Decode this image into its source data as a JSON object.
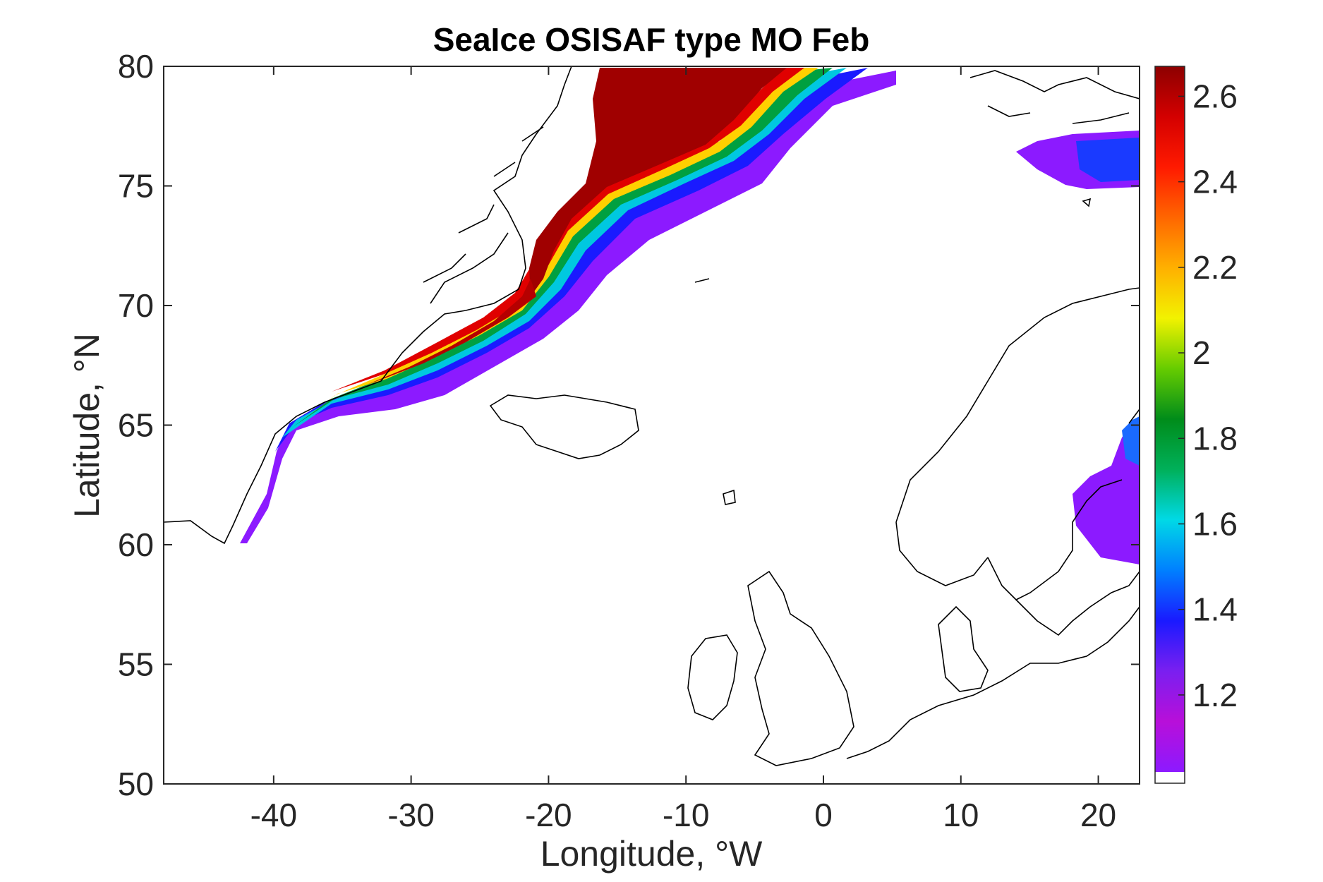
{
  "title": "SeaIce OSISAF type MO Feb",
  "map": {
    "x_label": "Longitude, °W",
    "y_label": "Latitude, °N",
    "x_ticks": [
      {
        "value": -40,
        "label": "-40"
      },
      {
        "value": -30,
        "label": "-30"
      },
      {
        "value": -20,
        "label": "-20"
      },
      {
        "value": -10,
        "label": "-10"
      },
      {
        "value": 0,
        "label": "0"
      },
      {
        "value": 10,
        "label": "10"
      },
      {
        "value": 20,
        "label": "20"
      }
    ],
    "y_ticks": [
      {
        "value": 50,
        "label": "50"
      },
      {
        "value": 55,
        "label": "55"
      },
      {
        "value": 60,
        "label": "60"
      },
      {
        "value": 65,
        "label": "65"
      },
      {
        "value": 70,
        "label": "70"
      },
      {
        "value": 75,
        "label": "75"
      },
      {
        "value": 80,
        "label": "80"
      }
    ],
    "lon_range": [
      -48,
      23
    ],
    "lat_range": [
      50,
      80
    ]
  },
  "colorbar": {
    "range": [
      1.02,
      2.67
    ],
    "ticks": [
      {
        "value": 1.2,
        "label": "1.2"
      },
      {
        "value": 1.4,
        "label": "1.4"
      },
      {
        "value": 1.6,
        "label": "1.6"
      },
      {
        "value": 1.8,
        "label": "1.8"
      },
      {
        "value": 2.0,
        "label": "2"
      },
      {
        "value": 2.2,
        "label": "2.2"
      },
      {
        "value": 2.4,
        "label": "2.4"
      },
      {
        "value": 2.6,
        "label": "2.6"
      }
    ],
    "colors": [
      "#8c1aff",
      "#b80fd9",
      "#7a1ff0",
      "#1a1aff",
      "#0080ff",
      "#00d9e6",
      "#00b05a",
      "#008c1a",
      "#66cc00",
      "#f2f200",
      "#ffb000",
      "#ff6600",
      "#ff1a00",
      "#d40000",
      "#8c0000"
    ]
  },
  "colors": {
    "coastline": "#000000",
    "axis": "#262626"
  }
}
